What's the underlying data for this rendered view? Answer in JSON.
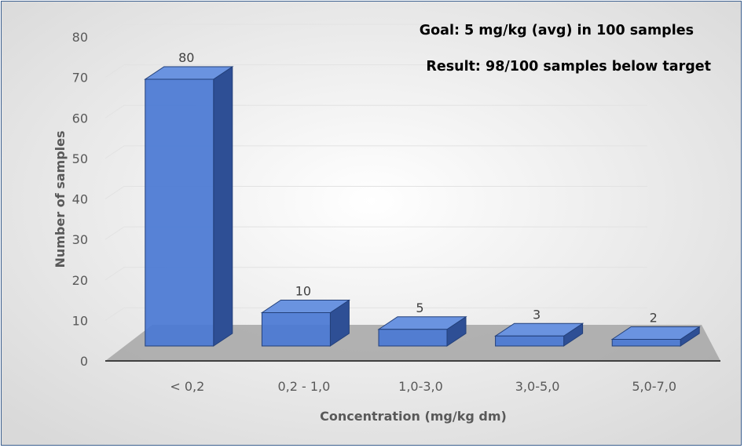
{
  "chart_data": {
    "type": "bar",
    "categories": [
      "< 0,2",
      "0,2 - 1,0",
      "1,0-3,0",
      "3,0-5,0",
      "5,0-7,0"
    ],
    "values": [
      80,
      10,
      5,
      3,
      2
    ],
    "data_labels": [
      "80",
      "10",
      "5",
      "3",
      "2"
    ],
    "title": "",
    "xlabel": "Concentration (mg/kg dm)",
    "ylabel": "Number of samples",
    "ylim": [
      0,
      80
    ],
    "y_ticks": [
      0,
      10,
      20,
      30,
      40,
      50,
      60,
      70,
      80
    ],
    "grid": true,
    "legend": "none",
    "annotations": [
      "Goal: 5 mg/kg (avg) in 100 samples",
      "Result: 98/100 samples below target"
    ],
    "colors": {
      "bar_front": "#4a78d4",
      "bar_top": "#6a93e0",
      "bar_side": "#2e4f95",
      "floor": "#a6a6a6"
    }
  }
}
